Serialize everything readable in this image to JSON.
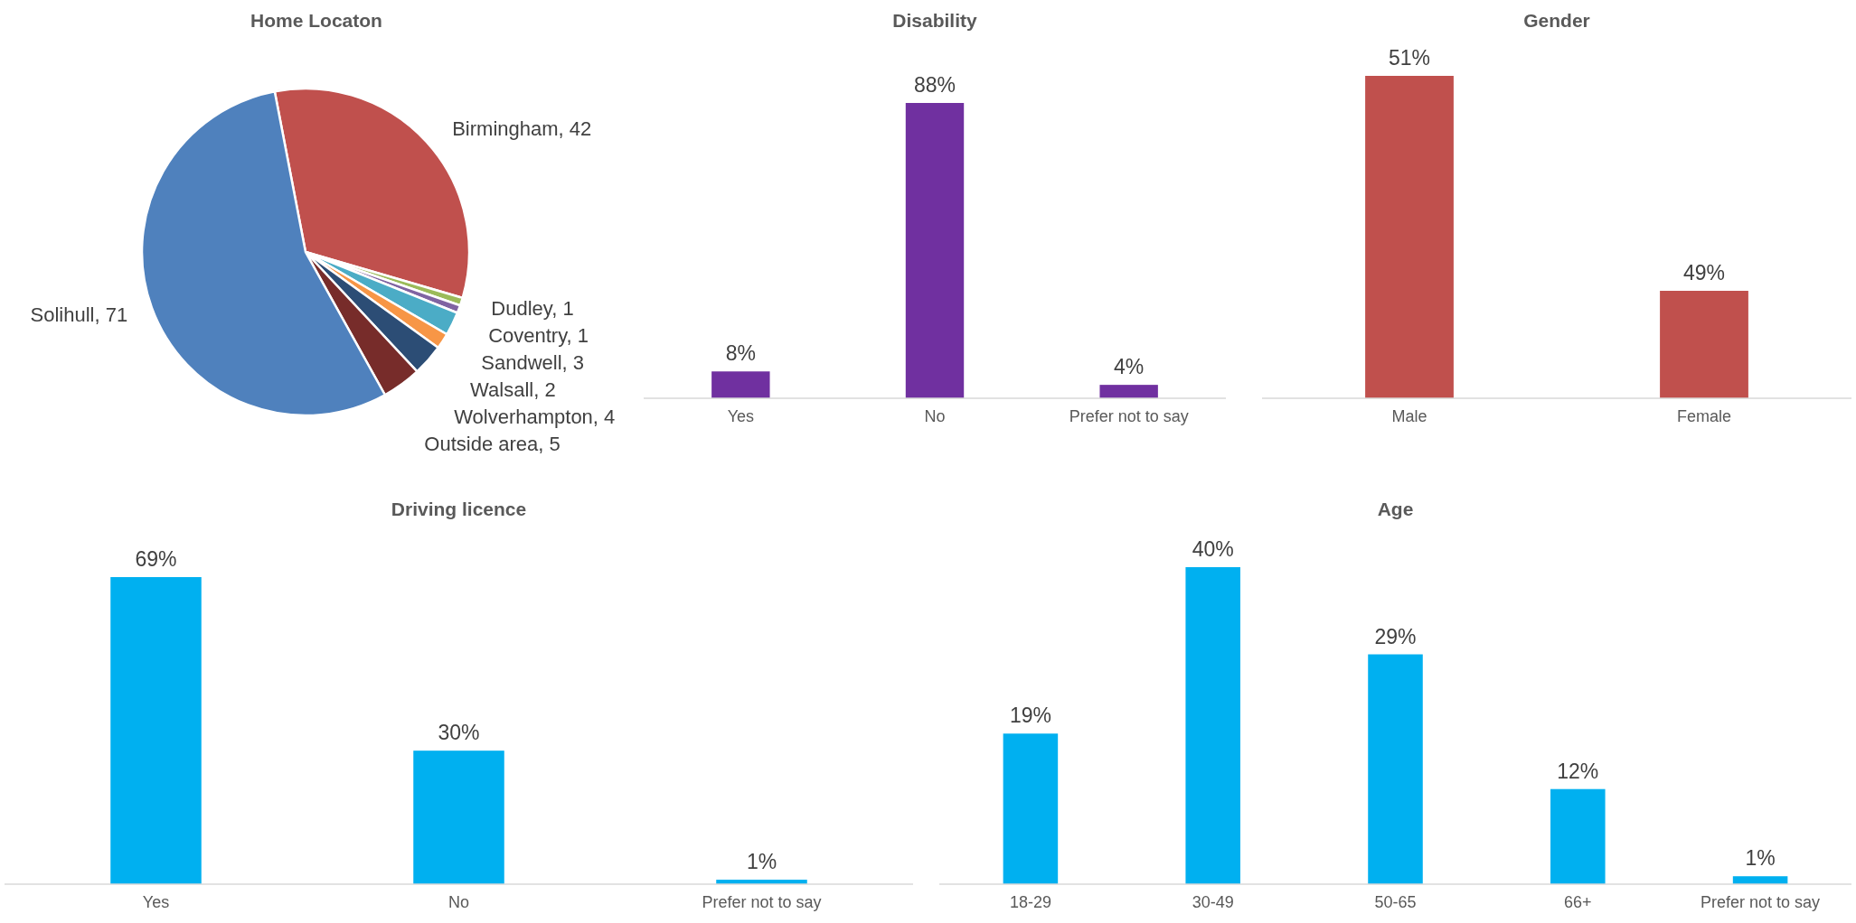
{
  "chart_data": [
    {
      "type": "pie",
      "title": "Home Locaton",
      "categories": [
        "Birmingham, 42",
        "Dudley, 1",
        "Coventry, 1",
        "Sandwell, 3",
        "Walsall, 2",
        "Wolverhampton, 4",
        "Outside area, 5",
        "Solihull, 71"
      ],
      "values": [
        42,
        1,
        1,
        3,
        2,
        4,
        5,
        71
      ],
      "colors": [
        "#c0504d",
        "#9bbb59",
        "#8064a2",
        "#4bacc6",
        "#f79646",
        "#2c4d75",
        "#772c2a",
        "#4f81bd"
      ]
    },
    {
      "type": "bar",
      "title": "Disability",
      "categories": [
        "Yes",
        "No",
        "Prefer not to say"
      ],
      "values": [
        8,
        88,
        4
      ],
      "color": "#7030a0",
      "value_labels": [
        "8%",
        "88%",
        "4%"
      ]
    },
    {
      "type": "bar",
      "title": "Gender",
      "categories": [
        "Male",
        "Female"
      ],
      "values": [
        51,
        49
      ],
      "ylim": [
        48,
        51
      ],
      "color": "#c0504d",
      "value_labels": [
        "51%",
        "49%"
      ]
    },
    {
      "type": "bar",
      "title": "Driving licence",
      "categories": [
        "Yes",
        "No",
        "Prefer not to say"
      ],
      "values": [
        69,
        30,
        1
      ],
      "color": "#00b0f0",
      "value_labels": [
        "69%",
        "30%",
        "1%"
      ]
    },
    {
      "type": "bar",
      "title": "Age",
      "categories": [
        "18-29",
        "30-49",
        "50-65",
        "66+",
        "Prefer not to say"
      ],
      "values": [
        19,
        40,
        29,
        12,
        1
      ],
      "color": "#00b0f0",
      "value_labels": [
        "19%",
        "40%",
        "29%",
        "12%",
        "1%"
      ]
    }
  ]
}
